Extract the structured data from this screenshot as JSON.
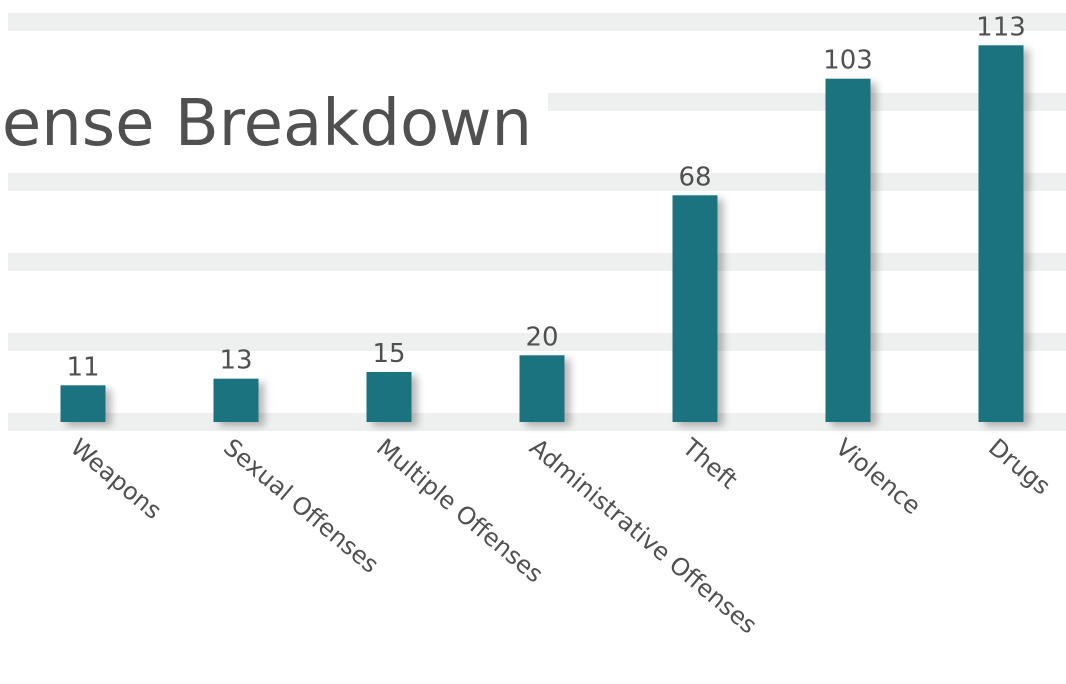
{
  "chart_data": {
    "type": "bar",
    "title": "ense Breakdown",
    "categories": [
      "Weapons",
      "Sexual Offenses",
      "Multiple Offenses",
      "Administrative Offenses",
      "Theft",
      "Violence",
      "Drugs"
    ],
    "values": [
      11,
      13,
      15,
      20,
      68,
      103,
      113
    ],
    "xlabel": "",
    "ylabel": "",
    "ylim": [
      0,
      120
    ],
    "grid": true,
    "legend": "none",
    "colors": {
      "bar": "#1b7380",
      "grid": "#eef0ef",
      "text": "#505050",
      "background": "#ffffff"
    }
  }
}
